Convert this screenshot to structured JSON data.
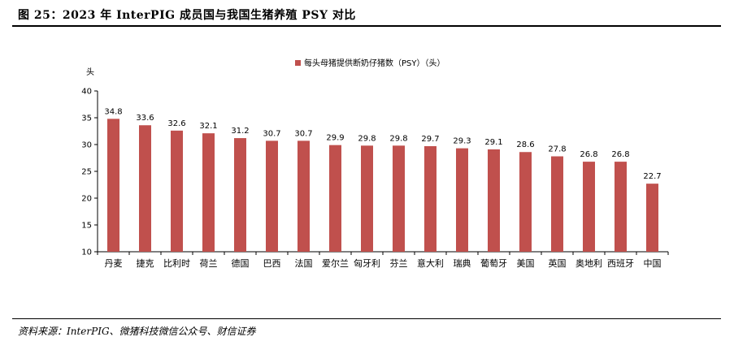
{
  "title": "图 25：2023 年 InterPIG 成员国与我国生猪养殖 PSY 对比",
  "source": "资料来源：InterPIG、微猪科技微信公众号、财信证券",
  "chart_data": {
    "type": "bar",
    "ylabel": "头",
    "ylim": [
      10,
      40
    ],
    "yticks": [
      10,
      15,
      20,
      25,
      30,
      35,
      40
    ],
    "legend": "每头母猪提供断奶仔猪数（PSY）（头）",
    "legend_position": "top-center",
    "grid": false,
    "bar_color": "#c0504d",
    "categories": [
      "丹麦",
      "捷克",
      "比利时",
      "荷兰",
      "德国",
      "巴西",
      "法国",
      "爱尔兰",
      "匈牙利",
      "芬兰",
      "意大利",
      "瑞典",
      "葡萄牙",
      "美国",
      "英国",
      "奥地利",
      "西班牙",
      "中国"
    ],
    "values": [
      34.8,
      33.6,
      32.6,
      32.1,
      31.2,
      30.7,
      30.7,
      29.9,
      29.8,
      29.8,
      29.7,
      29.3,
      29.1,
      28.6,
      27.8,
      26.8,
      26.8,
      22.7
    ],
    "value_labels": [
      "34.8",
      "33.6",
      "32.6",
      "32.1",
      "31.2",
      "30.7",
      "30.7",
      "29.9",
      "29.8",
      "29.8",
      "29.7",
      "29.3",
      "29.1",
      "28.6",
      "27.8",
      "26.8",
      "26.8",
      "22.7"
    ]
  }
}
